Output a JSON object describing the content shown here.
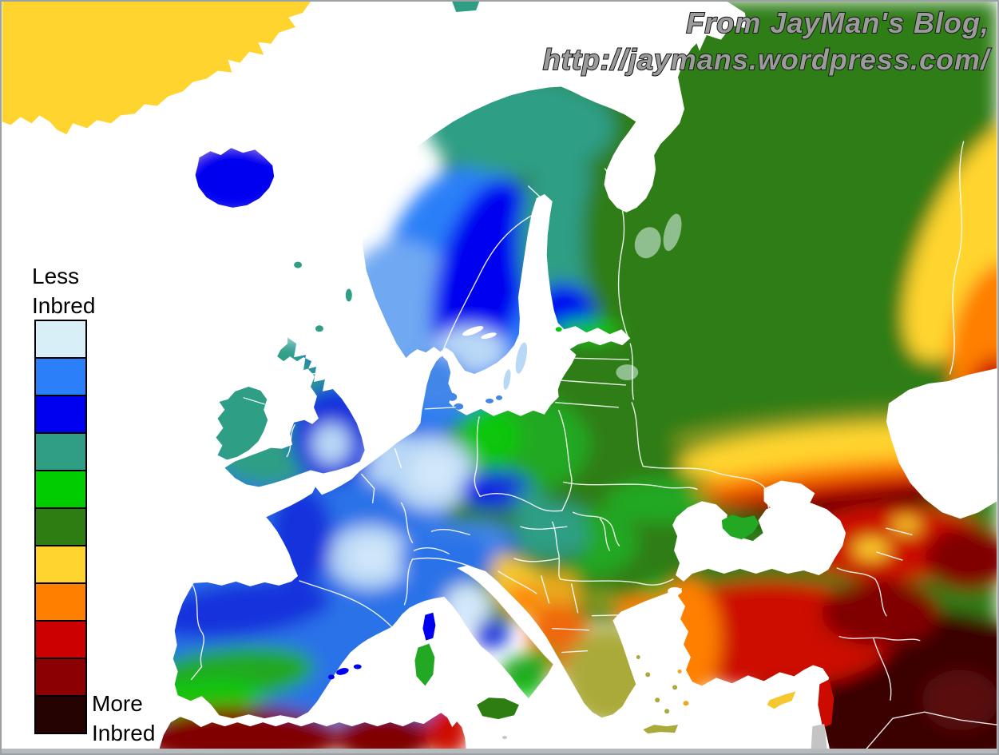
{
  "watermark": {
    "line1": "From JayMan's Blog,",
    "line2": "http://jaymans.wordpress.com/",
    "text_color": "#9b9b9b",
    "outline_color": "#1c1c1c"
  },
  "legend": {
    "top_label_line1": "Less",
    "top_label_line2": "Inbred",
    "bottom_label_line1": "More",
    "bottom_label_line2": "Inbred",
    "swatches": [
      {
        "level": 1,
        "color": "#D8EFF8"
      },
      {
        "level": 2,
        "color": "#2B7FF8"
      },
      {
        "level": 3,
        "color": "#0000F0"
      },
      {
        "level": 4,
        "color": "#2F9E85"
      },
      {
        "level": 5,
        "color": "#00CC00"
      },
      {
        "level": 6,
        "color": "#2E7D12"
      },
      {
        "level": 7,
        "color": "#FFD42E"
      },
      {
        "level": 8,
        "color": "#FF7F00"
      },
      {
        "level": 9,
        "color": "#CC0000"
      },
      {
        "level": 10,
        "color": "#8B0000"
      },
      {
        "level": 11,
        "color": "#260303"
      }
    ]
  },
  "palette": {
    "yellow": "#FFD42E",
    "yellowWarm": "#F5C832",
    "amber": "#E8A81E",
    "olive": "#AAAA3A",
    "oliveDark": "#869A22",
    "orange": "#FF7F00",
    "orangeDeep": "#F06808",
    "red": "#CC0B00",
    "darkRed": "#800505",
    "maroonSpot": "#5A0A0A",
    "veryDark": "#3A0505",
    "nearBlack": "#200202",
    "blue": "#0000F0",
    "azure": "#2B7FF8",
    "westBase": "#2A72E8",
    "deepBlue": "#1430DC",
    "medBlue": "#4287E8",
    "lightCoast": "#6FA8F2",
    "palePeri": "#B9D8F6",
    "paleCenter": "#D2E8FA",
    "teal": "#2F9E85",
    "greenBright": "#0FC60F",
    "greenMid": "#22A822",
    "darkGreen": "#2E7D12",
    "slovenia": "#4E8C14",
    "lakeGreen": "#8FBF8F",
    "gray": "#C4C4C4"
  },
  "frame": {
    "border_color": "#9aa0a4",
    "bottom_bar_color": "#b7babd",
    "background": "#ffffff"
  }
}
